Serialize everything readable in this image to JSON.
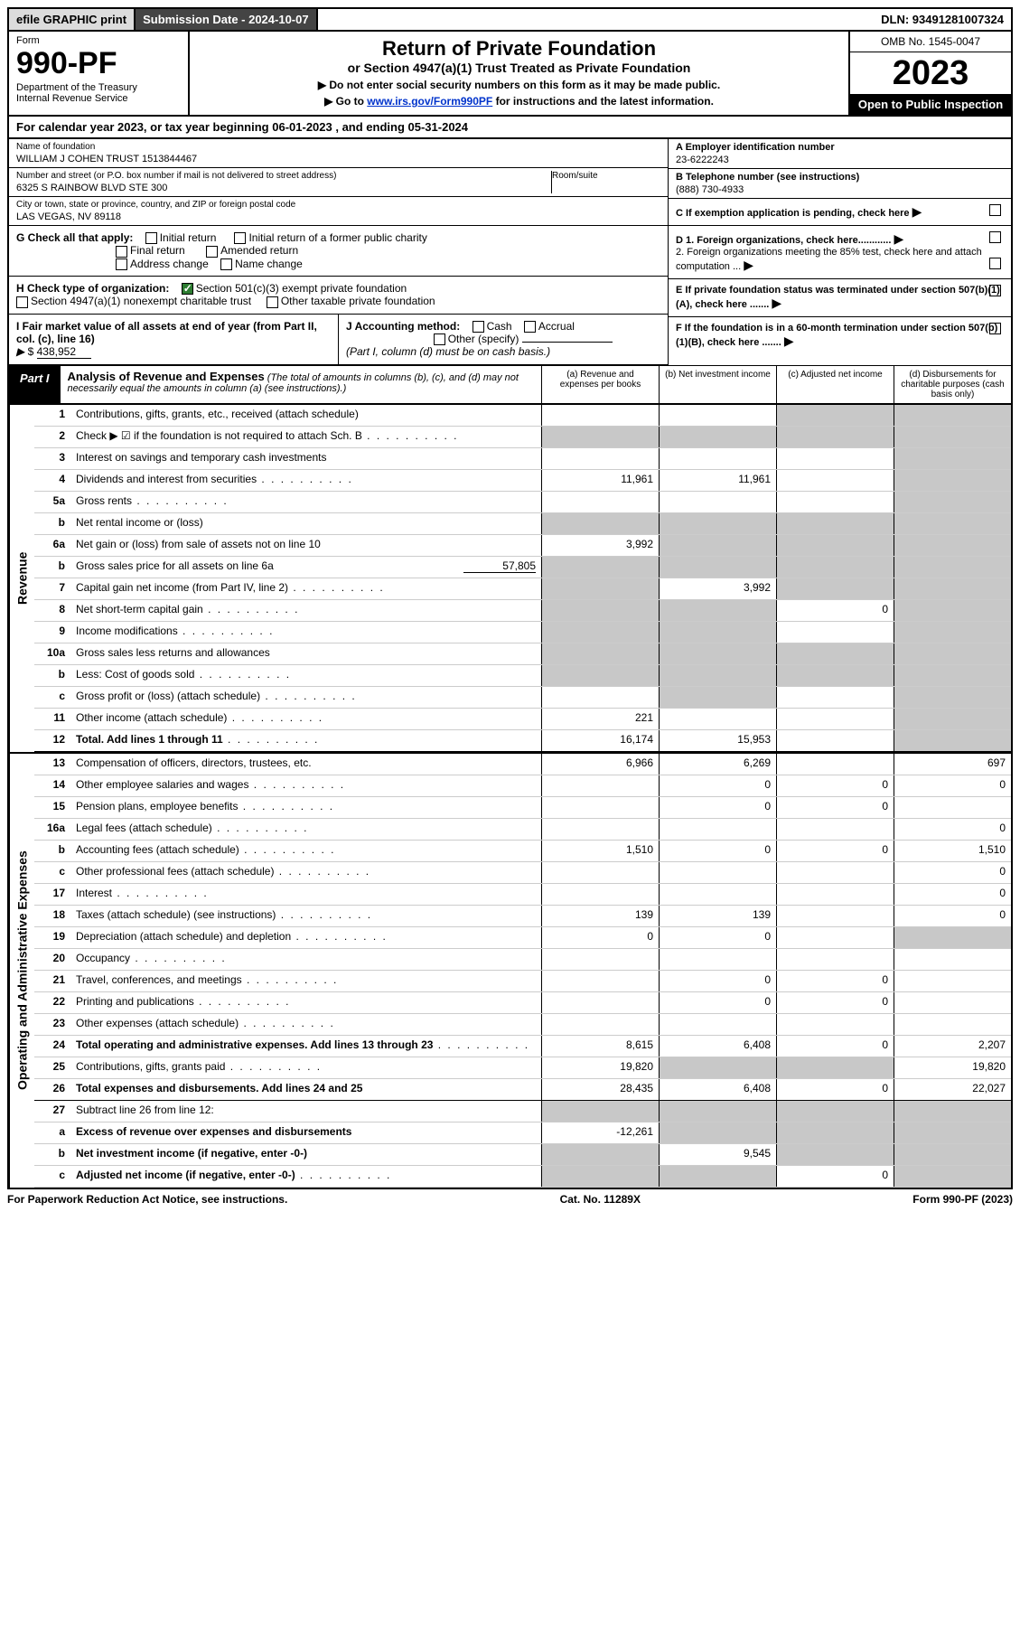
{
  "colors": {
    "black": "#000000",
    "white": "#ffffff",
    "grey_btn": "#dcdcdc",
    "dark_bar": "#444444",
    "link": "#0033cc",
    "check_green": "#2e7d32",
    "shade": "#c8c8c8",
    "row_border": "#cccccc"
  },
  "top": {
    "efile": "efile GRAPHIC print",
    "sub_date": "Submission Date - 2024-10-07",
    "dln": "DLN: 93491281007324"
  },
  "header": {
    "form_word": "Form",
    "form_no": "990-PF",
    "dept": "Department of the Treasury",
    "irs": "Internal Revenue Service",
    "title": "Return of Private Foundation",
    "subtitle": "or Section 4947(a)(1) Trust Treated as Private Foundation",
    "note1": "▶ Do not enter social security numbers on this form as it may be made public.",
    "note2_pre": "▶ Go to ",
    "note2_link": "www.irs.gov/Form990PF",
    "note2_post": " for instructions and the latest information.",
    "omb": "OMB No. 1545-0047",
    "year": "2023",
    "open": "Open to Public Inspection"
  },
  "cal": {
    "text_pre": "For calendar year 2023, or tax year beginning ",
    "begin": "06-01-2023",
    "text_mid": " , and ending ",
    "end": "05-31-2024"
  },
  "info": {
    "name_label": "Name of foundation",
    "name": "WILLIAM J COHEN TRUST 1513844467",
    "addr_label": "Number and street (or P.O. box number if mail is not delivered to street address)",
    "addr": "6325 S RAINBOW BLVD STE 300",
    "room_label": "Room/suite",
    "city_label": "City or town, state or province, country, and ZIP or foreign postal code",
    "city": "LAS VEGAS, NV  89118",
    "a_label": "A Employer identification number",
    "ein": "23-6222243",
    "b_label": "B Telephone number (see instructions)",
    "phone": "(888) 730-4933",
    "c_label": "C If exemption application is pending, check here",
    "d1": "D 1. Foreign organizations, check here............",
    "d2": "2. Foreign organizations meeting the 85% test, check here and attach computation ...",
    "e_label": "E  If private foundation status was terminated under section 507(b)(1)(A), check here .......",
    "f_label": "F  If the foundation is in a 60-month termination under section 507(b)(1)(B), check here ......."
  },
  "g": {
    "label": "G Check all that apply:",
    "opts": [
      "Initial return",
      "Final return",
      "Address change",
      "Initial return of a former public charity",
      "Amended return",
      "Name change"
    ]
  },
  "h": {
    "label": "H Check type of organization:",
    "opt1": "Section 501(c)(3) exempt private foundation",
    "opt2": "Section 4947(a)(1) nonexempt charitable trust",
    "opt3": "Other taxable private foundation"
  },
  "i": {
    "label": "I Fair market value of all assets at end of year (from Part II, col. (c), line 16)",
    "arrow": "▶",
    "prefix": "$",
    "value": "438,952"
  },
  "j": {
    "label": "J Accounting method:",
    "cash": "Cash",
    "accrual": "Accrual",
    "other": "Other (specify)",
    "note": "(Part I, column (d) must be on cash basis.)"
  },
  "part1": {
    "label": "Part I",
    "title": "Analysis of Revenue and Expenses",
    "note": "(The total of amounts in columns (b), (c), and (d) may not necessarily equal the amounts in column (a) (see instructions).)",
    "col_a": "(a)  Revenue and expenses per books",
    "col_b": "(b)  Net investment income",
    "col_c": "(c)  Adjusted net income",
    "col_d": "(d)  Disbursements for charitable purposes (cash basis only)"
  },
  "sections": {
    "revenue": "Revenue",
    "expenses": "Operating and Administrative Expenses"
  },
  "rows": [
    {
      "n": "1",
      "label": "Contributions, gifts, grants, etc., received (attach schedule)",
      "a": "",
      "b": "",
      "c": "s",
      "d": "s"
    },
    {
      "n": "2",
      "label": "Check ▶ ☑ if the foundation is not required to attach Sch. B",
      "a": "s",
      "b": "s",
      "c": "s",
      "d": "s",
      "dots": true
    },
    {
      "n": "3",
      "label": "Interest on savings and temporary cash investments",
      "a": "",
      "b": "",
      "c": "",
      "d": "s"
    },
    {
      "n": "4",
      "label": "Dividends and interest from securities",
      "a": "11,961",
      "b": "11,961",
      "c": "",
      "d": "s",
      "dots": true
    },
    {
      "n": "5a",
      "label": "Gross rents",
      "a": "",
      "b": "",
      "c": "",
      "d": "s",
      "dots": true
    },
    {
      "n": "b",
      "label": "Net rental income or (loss)",
      "a": "s",
      "b": "s",
      "c": "s",
      "d": "s",
      "inset": true
    },
    {
      "n": "6a",
      "label": "Net gain or (loss) from sale of assets not on line 10",
      "a": "3,992",
      "b": "s",
      "c": "s",
      "d": "s"
    },
    {
      "n": "b",
      "label": "Gross sales price for all assets on line 6a",
      "a": "s",
      "b": "s",
      "c": "s",
      "d": "s",
      "inline_val": "57,805"
    },
    {
      "n": "7",
      "label": "Capital gain net income (from Part IV, line 2)",
      "a": "s",
      "b": "3,992",
      "c": "s",
      "d": "s",
      "dots": true
    },
    {
      "n": "8",
      "label": "Net short-term capital gain",
      "a": "s",
      "b": "s",
      "c": "0",
      "d": "s",
      "dots": true
    },
    {
      "n": "9",
      "label": "Income modifications",
      "a": "s",
      "b": "s",
      "c": "",
      "d": "s",
      "dots": true
    },
    {
      "n": "10a",
      "label": "Gross sales less returns and allowances",
      "a": "s",
      "b": "s",
      "c": "s",
      "d": "s",
      "inset": true
    },
    {
      "n": "b",
      "label": "Less: Cost of goods sold",
      "a": "s",
      "b": "s",
      "c": "s",
      "d": "s",
      "dots": true,
      "inset": true
    },
    {
      "n": "c",
      "label": "Gross profit or (loss) (attach schedule)",
      "a": "",
      "b": "s",
      "c": "",
      "d": "s",
      "dots": true
    },
    {
      "n": "11",
      "label": "Other income (attach schedule)",
      "a": "221",
      "b": "",
      "c": "",
      "d": "s",
      "dots": true
    },
    {
      "n": "12",
      "label": "Total. Add lines 1 through 11",
      "a": "16,174",
      "b": "15,953",
      "c": "",
      "d": "s",
      "bold": true,
      "dots": true,
      "bb": true
    }
  ],
  "exp_rows": [
    {
      "n": "13",
      "label": "Compensation of officers, directors, trustees, etc.",
      "a": "6,966",
      "b": "6,269",
      "c": "",
      "d": "697"
    },
    {
      "n": "14",
      "label": "Other employee salaries and wages",
      "a": "",
      "b": "0",
      "c": "0",
      "d": "0",
      "dots": true
    },
    {
      "n": "15",
      "label": "Pension plans, employee benefits",
      "a": "",
      "b": "0",
      "c": "0",
      "d": "",
      "dots": true
    },
    {
      "n": "16a",
      "label": "Legal fees (attach schedule)",
      "a": "",
      "b": "",
      "c": "",
      "d": "0",
      "dots": true
    },
    {
      "n": "b",
      "label": "Accounting fees (attach schedule)",
      "a": "1,510",
      "b": "0",
      "c": "0",
      "d": "1,510",
      "dots": true
    },
    {
      "n": "c",
      "label": "Other professional fees (attach schedule)",
      "a": "",
      "b": "",
      "c": "",
      "d": "0",
      "dots": true
    },
    {
      "n": "17",
      "label": "Interest",
      "a": "",
      "b": "",
      "c": "",
      "d": "0",
      "dots": true
    },
    {
      "n": "18",
      "label": "Taxes (attach schedule) (see instructions)",
      "a": "139",
      "b": "139",
      "c": "",
      "d": "0",
      "dots": true
    },
    {
      "n": "19",
      "label": "Depreciation (attach schedule) and depletion",
      "a": "0",
      "b": "0",
      "c": "",
      "d": "s",
      "dots": true
    },
    {
      "n": "20",
      "label": "Occupancy",
      "a": "",
      "b": "",
      "c": "",
      "d": "",
      "dots": true
    },
    {
      "n": "21",
      "label": "Travel, conferences, and meetings",
      "a": "",
      "b": "0",
      "c": "0",
      "d": "",
      "dots": true
    },
    {
      "n": "22",
      "label": "Printing and publications",
      "a": "",
      "b": "0",
      "c": "0",
      "d": "",
      "dots": true
    },
    {
      "n": "23",
      "label": "Other expenses (attach schedule)",
      "a": "",
      "b": "",
      "c": "",
      "d": "",
      "dots": true
    },
    {
      "n": "24",
      "label": "Total operating and administrative expenses. Add lines 13 through 23",
      "a": "8,615",
      "b": "6,408",
      "c": "0",
      "d": "2,207",
      "bold": true,
      "dots": true
    },
    {
      "n": "25",
      "label": "Contributions, gifts, grants paid",
      "a": "19,820",
      "b": "s",
      "c": "s",
      "d": "19,820",
      "dots": true
    },
    {
      "n": "26",
      "label": "Total expenses and disbursements. Add lines 24 and 25",
      "a": "28,435",
      "b": "6,408",
      "c": "0",
      "d": "22,027",
      "bold": true,
      "bb": true
    },
    {
      "n": "27",
      "label": "Subtract line 26 from line 12:",
      "a": "s",
      "b": "s",
      "c": "s",
      "d": "s"
    },
    {
      "n": "a",
      "label": "Excess of revenue over expenses and disbursements",
      "a": "-12,261",
      "b": "s",
      "c": "s",
      "d": "s",
      "bold": true
    },
    {
      "n": "b",
      "label": "Net investment income (if negative, enter -0-)",
      "a": "s",
      "b": "9,545",
      "c": "s",
      "d": "s",
      "bold": true
    },
    {
      "n": "c",
      "label": "Adjusted net income (if negative, enter -0-)",
      "a": "s",
      "b": "s",
      "c": "0",
      "d": "s",
      "bold": true,
      "dots": true
    }
  ],
  "footer": {
    "left": "For Paperwork Reduction Act Notice, see instructions.",
    "mid": "Cat. No. 11289X",
    "right": "Form 990-PF (2023)"
  }
}
